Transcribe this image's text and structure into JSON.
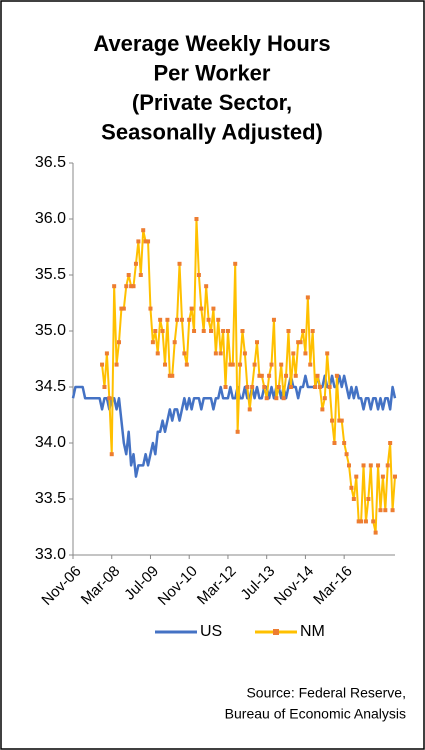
{
  "chart_data": {
    "type": "line",
    "title": [
      "Average Weekly Hours",
      "Per Worker",
      "(Private Sector,",
      "Seasonally Adjusted)"
    ],
    "categories": [
      "Nov-06",
      null,
      null,
      null,
      null,
      null,
      null,
      null,
      null,
      null,
      null,
      null,
      null,
      null,
      null,
      null,
      "Mar-08",
      null,
      null,
      null,
      null,
      null,
      null,
      null,
      null,
      null,
      null,
      null,
      null,
      null,
      null,
      null,
      "Jul-09",
      null,
      null,
      null,
      null,
      null,
      null,
      null,
      null,
      null,
      null,
      null,
      null,
      null,
      null,
      null,
      "Nov-10",
      null,
      null,
      null,
      null,
      null,
      null,
      null,
      null,
      null,
      null,
      null,
      null,
      null,
      null,
      null,
      "Mar-12",
      null,
      null,
      null,
      null,
      null,
      null,
      null,
      null,
      null,
      null,
      null,
      null,
      null,
      null,
      null,
      "Jul-13",
      null,
      null,
      null,
      null,
      null,
      null,
      null,
      null,
      null,
      null,
      null,
      null,
      null,
      null,
      null,
      "Nov-14",
      null,
      null,
      null,
      null,
      null,
      null,
      null,
      null,
      null,
      null,
      null,
      null,
      null,
      null,
      null,
      "Mar-16",
      null,
      null,
      null,
      null,
      null,
      null,
      null,
      null,
      null,
      null,
      null,
      null,
      null,
      null,
      null,
      null,
      null,
      null,
      null,
      null,
      null
    ],
    "series": [
      {
        "name": "US",
        "color": "#4472c4",
        "marker": false,
        "values": [
          34.4,
          34.5,
          34.5,
          34.5,
          34.5,
          34.4,
          34.4,
          34.4,
          34.4,
          34.4,
          34.4,
          34.4,
          34.3,
          34.4,
          34.4,
          34.3,
          34.4,
          34.4,
          34.3,
          34.4,
          34.2,
          34.0,
          33.9,
          34.1,
          33.8,
          33.9,
          33.7,
          33.8,
          33.8,
          33.8,
          33.9,
          33.8,
          33.9,
          34.0,
          33.9,
          34.1,
          34.1,
          34.2,
          34.1,
          34.2,
          34.3,
          34.2,
          34.3,
          34.3,
          34.2,
          34.3,
          34.4,
          34.3,
          34.4,
          34.3,
          34.4,
          34.4,
          34.4,
          34.3,
          34.4,
          34.4,
          34.4,
          34.4,
          34.3,
          34.4,
          34.4,
          34.5,
          34.4,
          34.4,
          34.4,
          34.5,
          34.4,
          34.4,
          34.5,
          34.4,
          34.4,
          34.5,
          34.4,
          34.4,
          34.5,
          34.4,
          34.5,
          34.4,
          34.4,
          34.5,
          34.5,
          34.4,
          34.5,
          34.4,
          34.5,
          34.5,
          34.4,
          34.5,
          34.4,
          34.5,
          34.6,
          34.5,
          34.5,
          34.4,
          34.5,
          34.5,
          34.6,
          34.5,
          34.5,
          34.5,
          34.5,
          34.6,
          34.5,
          34.5,
          34.6,
          34.5,
          34.5,
          34.6,
          34.5,
          34.5,
          34.6,
          34.5,
          34.6,
          34.5,
          34.4,
          34.5,
          34.4,
          34.5,
          34.4,
          34.4,
          34.3,
          34.4,
          34.4,
          34.3,
          34.4,
          34.4,
          34.3,
          34.4,
          34.3,
          34.4,
          34.4,
          34.3,
          34.5,
          34.4
        ]
      },
      {
        "name": "NM",
        "color": "#ffc000",
        "marker": true,
        "marker_color": "#ed7d31",
        "values": [
          null,
          null,
          null,
          null,
          null,
          null,
          null,
          null,
          null,
          null,
          null,
          null,
          34.7,
          34.5,
          34.8,
          34.4,
          33.9,
          35.4,
          34.7,
          34.9,
          35.2,
          35.2,
          35.4,
          35.5,
          35.4,
          35.4,
          35.6,
          35.8,
          35.5,
          35.9,
          35.8,
          35.8,
          35.2,
          34.9,
          35.0,
          34.8,
          35.1,
          35.0,
          34.7,
          35.1,
          34.6,
          34.6,
          34.9,
          35.1,
          35.6,
          35.1,
          34.8,
          34.7,
          35.1,
          35.2,
          35.0,
          36.0,
          35.5,
          35.2,
          35.0,
          35.4,
          35.1,
          35.0,
          35.2,
          34.8,
          35.1,
          34.8,
          35.0,
          34.5,
          35.0,
          34.7,
          34.7,
          35.6,
          34.1,
          34.7,
          35.0,
          34.8,
          34.5,
          34.3,
          34.5,
          34.7,
          34.9,
          34.6,
          34.6,
          34.5,
          34.4,
          34.6,
          34.7,
          35.1,
          34.4,
          34.5,
          34.7,
          34.4,
          34.6,
          35.0,
          34.5,
          34.8,
          34.6,
          34.9,
          34.9,
          35.0,
          34.8,
          35.3,
          34.7,
          35.0,
          34.5,
          34.6,
          34.5,
          34.3,
          34.4,
          34.8,
          34.5,
          34.2,
          34.0,
          34.6,
          34.2,
          34.2,
          34.0,
          33.9,
          33.8,
          33.6,
          33.5,
          33.7,
          33.3,
          33.3,
          33.8,
          33.3,
          33.5,
          33.8,
          33.3,
          33.2,
          33.8,
          33.4,
          33.7,
          33.4,
          33.8,
          34.0,
          33.4,
          33.7
        ]
      }
    ],
    "ylim": [
      33.0,
      36.5
    ],
    "yticks": [
      {
        "value": 33.0,
        "label": "33.0"
      },
      33.5,
      {
        "value": 34.0,
        "label": "34.0"
      },
      34.5,
      {
        "value": 35.0,
        "label": "35.0"
      },
      35.5,
      {
        "value": 36.0,
        "label": "36.0"
      },
      36.5
    ],
    "grid": false,
    "legend": "bottom",
    "source": [
      "Source: Federal Reserve,",
      "Bureau of Economic Analysis"
    ]
  }
}
